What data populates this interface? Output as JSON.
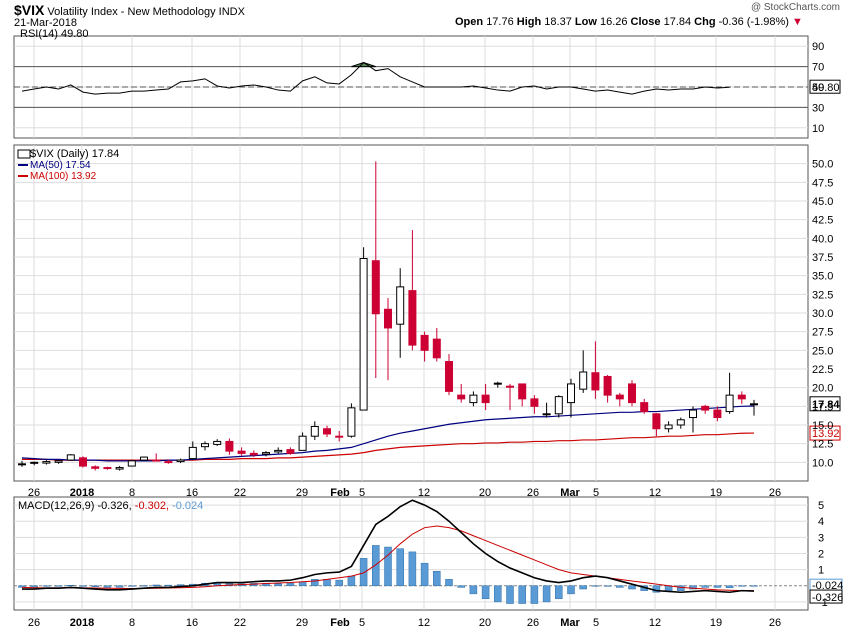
{
  "header": {
    "symbol": "$VIX",
    "name": "Volatility Index - New Methodology",
    "exchange": "INDX",
    "date": "21-Mar-2018",
    "watermark": "@ StockCharts.com",
    "quote": {
      "open_label": "Open",
      "open": "17.76",
      "high_label": "High",
      "high": "18.37",
      "low_label": "Low",
      "low": "16.26",
      "close_label": "Close",
      "close": "17.84",
      "chg_label": "Chg",
      "chg": "-0.36 (-1.98%)",
      "chg_arrow": "▼"
    }
  },
  "colors": {
    "up": "#ffffff",
    "down": "#cc0033",
    "outline": "#000000",
    "ma50": "#000080",
    "ma100": "#cc0000",
    "hist": "#5b9bd5",
    "rsi_fill": "#5a8a5a",
    "grid": "#dddddd",
    "signal": "#cc0000"
  },
  "chart_data": [
    {
      "type": "line",
      "panel": "rsi",
      "title": "RSI(14) 49.80",
      "ylim": [
        0,
        100
      ],
      "y_ticks": [
        10,
        30,
        50,
        70,
        90
      ],
      "ref_lines": [
        30,
        50,
        70
      ],
      "current_label": "49.80",
      "values": [
        46,
        48,
        50,
        48,
        52,
        45,
        43,
        44,
        44,
        46,
        46,
        47,
        48,
        55,
        56,
        58,
        51,
        49,
        51,
        52,
        50,
        47,
        46,
        56,
        60,
        54,
        53,
        62,
        74,
        66,
        68,
        60,
        55,
        50,
        50,
        50,
        50,
        51,
        49,
        47,
        46,
        50,
        51,
        48,
        50,
        50,
        48,
        46,
        47,
        45,
        43,
        46,
        48,
        47,
        48,
        48,
        50,
        49,
        49.8
      ]
    },
    {
      "type": "candlestick",
      "panel": "price",
      "legend": [
        "$VIX (Daily) 17.84",
        "MA(50) 17.54",
        "MA(100) 13.92"
      ],
      "ylim": [
        7.5,
        52.5
      ],
      "y_ticks": [
        "10.0",
        "12.5",
        "15.0",
        "17.5",
        "20.0",
        "22.5",
        "25.0",
        "27.5",
        "30.0",
        "32.5",
        "35.0",
        "37.5",
        "40.0",
        "42.5",
        "45.0",
        "47.5",
        "50.0"
      ],
      "last_labels": [
        "17.84",
        "13.92"
      ],
      "x_labels": [
        "26",
        "2018",
        "8",
        "16",
        "22",
        "29",
        "Feb",
        "5",
        "12",
        "20",
        "26",
        "Mar",
        "5",
        "12",
        "19",
        "26"
      ],
      "candles": [
        [
          9.8,
          10.2,
          9.4,
          9.8
        ],
        [
          9.9,
          10.1,
          9.6,
          10.0
        ],
        [
          9.9,
          10.3,
          9.7,
          10.1
        ],
        [
          10.0,
          10.3,
          9.8,
          10.2
        ],
        [
          10.3,
          11.1,
          10.2,
          11.0
        ],
        [
          10.6,
          10.8,
          9.3,
          9.5
        ],
        [
          9.4,
          9.6,
          8.9,
          9.2
        ],
        [
          9.3,
          9.4,
          9.0,
          9.2
        ],
        [
          9.1,
          9.5,
          8.9,
          9.3
        ],
        [
          9.5,
          10.3,
          9.5,
          10.2
        ],
        [
          10.3,
          10.8,
          10.2,
          10.7
        ],
        [
          10.3,
          11.2,
          10.2,
          10.2
        ],
        [
          10.1,
          10.4,
          9.8,
          10.0
        ],
        [
          10.1,
          10.5,
          9.9,
          10.3
        ],
        [
          10.5,
          12.8,
          10.4,
          12.0
        ],
        [
          12.1,
          12.8,
          11.6,
          12.5
        ],
        [
          12.4,
          13.1,
          12.2,
          12.8
        ],
        [
          12.8,
          13.2,
          11.0,
          11.5
        ],
        [
          11.5,
          12.0,
          10.9,
          11.2
        ],
        [
          11.2,
          11.6,
          10.7,
          11.0
        ],
        [
          11.1,
          11.5,
          10.8,
          11.3
        ],
        [
          11.4,
          12.0,
          11.2,
          11.6
        ],
        [
          11.7,
          12.0,
          11.0,
          11.2
        ],
        [
          11.6,
          14.0,
          11.6,
          13.5
        ],
        [
          13.5,
          15.5,
          13.0,
          14.8
        ],
        [
          14.5,
          14.9,
          13.4,
          13.8
        ],
        [
          13.5,
          14.2,
          12.8,
          13.4
        ],
        [
          13.5,
          17.9,
          13.3,
          17.3
        ],
        [
          17.0,
          38.8,
          17.0,
          37.3
        ],
        [
          37.0,
          50.3,
          21.3,
          29.9
        ],
        [
          30.5,
          32.0,
          21.0,
          28.0
        ],
        [
          28.5,
          36.0,
          24.0,
          33.5
        ],
        [
          33.0,
          41.1,
          25.0,
          25.7
        ],
        [
          27.0,
          27.5,
          23.5,
          25.0
        ],
        [
          26.5,
          28.0,
          23.5,
          24.0
        ],
        [
          23.5,
          24.5,
          19.0,
          19.5
        ],
        [
          19.0,
          20.5,
          18.0,
          18.5
        ],
        [
          18.0,
          19.5,
          17.5,
          19.0
        ],
        [
          19.0,
          20.5,
          17.0,
          18.0
        ],
        [
          20.5,
          20.8,
          20.0,
          20.6
        ],
        [
          20.2,
          20.5,
          17.0,
          20.1
        ],
        [
          20.5,
          20.5,
          17.5,
          18.5
        ],
        [
          18.5,
          19.0,
          16.5,
          17.5
        ],
        [
          16.5,
          18.0,
          16.0,
          16.5
        ],
        [
          16.5,
          19.0,
          16.0,
          18.8
        ],
        [
          18.0,
          21.2,
          16.0,
          20.5
        ],
        [
          19.8,
          25.0,
          19.3,
          22.1
        ],
        [
          22.0,
          26.2,
          18.5,
          19.7
        ],
        [
          21.5,
          21.7,
          18.0,
          19.0
        ],
        [
          19.0,
          19.3,
          17.5,
          18.5
        ],
        [
          20.5,
          21.0,
          17.5,
          18.0
        ],
        [
          18.0,
          18.5,
          16.5,
          16.8
        ],
        [
          16.5,
          16.6,
          13.5,
          14.5
        ],
        [
          14.5,
          15.5,
          14.0,
          15.0
        ],
        [
          15.0,
          16.0,
          14.5,
          15.7
        ],
        [
          16.0,
          17.5,
          14.0,
          17.0
        ],
        [
          17.5,
          17.7,
          16.5,
          17.0
        ],
        [
          17.0,
          17.5,
          15.5,
          16.0
        ],
        [
          16.8,
          22.0,
          16.5,
          19.0
        ],
        [
          19.0,
          19.5,
          17.8,
          18.5
        ],
        [
          17.76,
          18.37,
          16.26,
          17.84
        ]
      ],
      "series": [
        {
          "name": "MA(50)",
          "values": [
            10.6,
            10.5,
            10.4,
            10.4,
            10.3,
            10.3,
            10.3,
            10.2,
            10.2,
            10.2,
            10.2,
            10.2,
            10.3,
            10.3,
            10.4,
            10.5,
            10.6,
            10.7,
            10.8,
            10.9,
            11.0,
            11.1,
            11.2,
            11.3,
            11.5,
            11.6,
            11.8,
            12.0,
            12.5,
            13.0,
            13.5,
            13.9,
            14.2,
            14.5,
            14.8,
            15.1,
            15.3,
            15.5,
            15.7,
            15.8,
            15.9,
            16.0,
            16.1,
            16.1,
            16.2,
            16.3,
            16.4,
            16.5,
            16.6,
            16.7,
            16.7,
            16.8,
            16.8,
            16.9,
            17.0,
            17.1,
            17.2,
            17.3,
            17.4,
            17.5,
            17.54
          ]
        },
        {
          "name": "MA(100)",
          "values": [
            10.4,
            10.4,
            10.4,
            10.3,
            10.3,
            10.3,
            10.3,
            10.3,
            10.3,
            10.3,
            10.3,
            10.3,
            10.3,
            10.3,
            10.3,
            10.4,
            10.4,
            10.4,
            10.5,
            10.5,
            10.5,
            10.6,
            10.6,
            10.7,
            10.8,
            10.9,
            11.0,
            11.1,
            11.3,
            11.6,
            11.8,
            12.0,
            12.1,
            12.2,
            12.3,
            12.4,
            12.5,
            12.5,
            12.6,
            12.6,
            12.7,
            12.7,
            12.8,
            12.8,
            12.9,
            12.9,
            13.0,
            13.0,
            13.1,
            13.2,
            13.3,
            13.3,
            13.4,
            13.5,
            13.5,
            13.6,
            13.7,
            13.7,
            13.8,
            13.9,
            13.92
          ]
        }
      ]
    },
    {
      "type": "line",
      "panel": "macd",
      "title": "MACD(12,26,9) -0.326, -0.302, -0.024",
      "ylim": [
        -1.5,
        5.5
      ],
      "y_ticks": [
        "-1",
        "1",
        "2",
        "3",
        "4",
        "5"
      ],
      "last_labels": [
        "-0.024",
        "-0.326"
      ],
      "x_labels": [
        "26",
        "2018",
        "8",
        "16",
        "22",
        "29",
        "Feb",
        "5",
        "12",
        "20",
        "26",
        "Mar",
        "5",
        "12",
        "19",
        "26"
      ],
      "series": [
        {
          "name": "MACD",
          "values": [
            -0.2,
            -0.2,
            -0.15,
            -0.15,
            -0.1,
            -0.15,
            -0.2,
            -0.25,
            -0.25,
            -0.2,
            -0.15,
            -0.1,
            -0.1,
            -0.05,
            0.0,
            0.1,
            0.2,
            0.2,
            0.2,
            0.25,
            0.3,
            0.3,
            0.35,
            0.5,
            0.7,
            0.8,
            0.85,
            1.2,
            2.5,
            3.8,
            4.3,
            4.9,
            5.3,
            5.0,
            4.6,
            4.0,
            3.3,
            2.6,
            2.0,
            1.5,
            1.1,
            0.8,
            0.5,
            0.3,
            0.2,
            0.3,
            0.5,
            0.6,
            0.5,
            0.3,
            0.1,
            -0.1,
            -0.3,
            -0.35,
            -0.4,
            -0.35,
            -0.3,
            -0.35,
            -0.4,
            -0.3,
            -0.326
          ]
        },
        {
          "name": "Signal",
          "values": [
            -0.1,
            -0.12,
            -0.13,
            -0.13,
            -0.13,
            -0.13,
            -0.14,
            -0.15,
            -0.16,
            -0.17,
            -0.16,
            -0.15,
            -0.14,
            -0.12,
            -0.1,
            -0.06,
            0.0,
            0.04,
            0.08,
            0.1,
            0.14,
            0.17,
            0.2,
            0.25,
            0.3,
            0.4,
            0.5,
            0.6,
            0.8,
            1.3,
            1.9,
            2.6,
            3.2,
            3.6,
            3.7,
            3.6,
            3.4,
            3.1,
            2.8,
            2.5,
            2.2,
            1.9,
            1.6,
            1.3,
            1.0,
            0.8,
            0.7,
            0.6,
            0.5,
            0.4,
            0.3,
            0.2,
            0.1,
            0.0,
            -0.1,
            -0.15,
            -0.2,
            -0.25,
            -0.28,
            -0.3,
            -0.302
          ]
        },
        {
          "name": "Histogram",
          "values": [
            -0.1,
            -0.08,
            -0.02,
            -0.02,
            0.03,
            -0.02,
            -0.06,
            -0.1,
            -0.09,
            -0.03,
            0.01,
            0.05,
            0.04,
            0.07,
            0.1,
            0.16,
            0.2,
            0.16,
            0.12,
            0.15,
            0.16,
            0.13,
            0.15,
            0.25,
            0.4,
            0.4,
            0.35,
            0.6,
            1.7,
            2.5,
            2.4,
            2.3,
            2.1,
            1.4,
            0.9,
            0.4,
            -0.1,
            -0.5,
            -0.8,
            -1.0,
            -1.1,
            -1.1,
            -1.1,
            -1.0,
            -0.8,
            -0.5,
            -0.2,
            0.0,
            0.0,
            -0.1,
            -0.2,
            -0.3,
            -0.4,
            -0.35,
            -0.3,
            -0.2,
            -0.1,
            -0.1,
            -0.12,
            0.0,
            -0.024
          ]
        }
      ]
    }
  ]
}
